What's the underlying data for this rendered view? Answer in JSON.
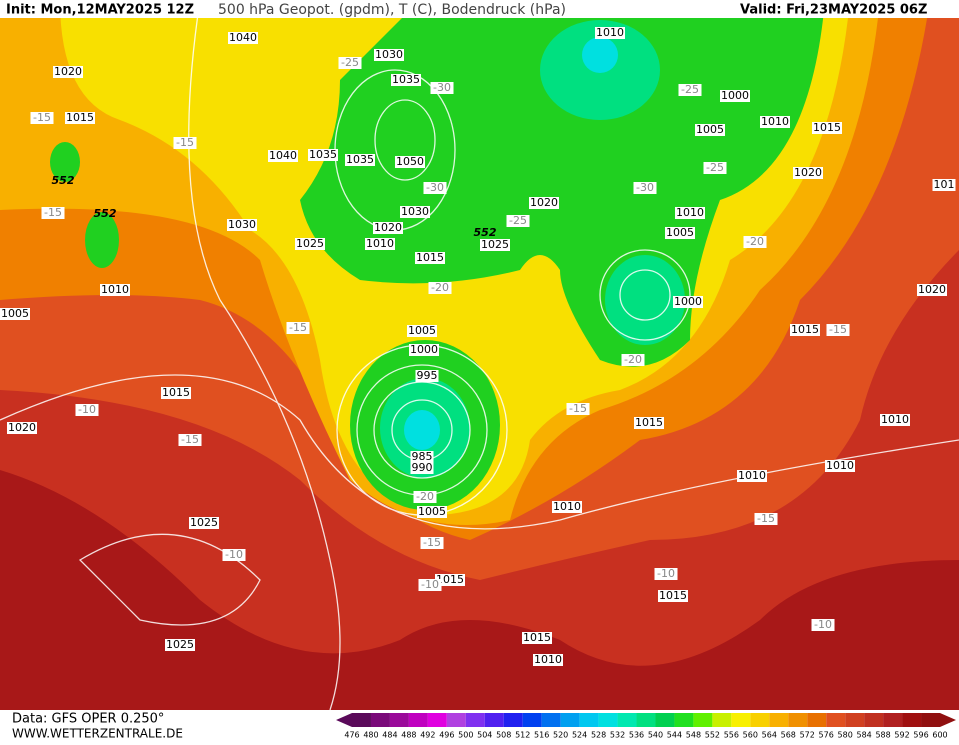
{
  "header": {
    "init": "Init: Mon,12MAY2025 12Z",
    "title": "500 hPa Geopot. (gpdm), T (C), Bodendruck (hPa)",
    "valid": "Valid: Fri,23MAY2025 06Z"
  },
  "footer": {
    "data_source": "Data: GFS OPER 0.250°",
    "website": "WWW.WETTERZENTRALE.DE"
  },
  "colorbar": {
    "ticks": [
      476,
      480,
      484,
      488,
      492,
      496,
      500,
      504,
      508,
      512,
      516,
      520,
      524,
      528,
      532,
      536,
      540,
      544,
      548,
      552,
      556,
      560,
      564,
      568,
      572,
      576,
      580,
      584,
      588,
      592,
      596,
      600
    ],
    "colors": [
      "#5a0a5a",
      "#7a0a7a",
      "#9a0a9a",
      "#c000c0",
      "#e000e0",
      "#b040e0",
      "#8030f0",
      "#5020f0",
      "#2020f0",
      "#0040f0",
      "#0070f0",
      "#00a0f0",
      "#00c8f0",
      "#00e0e0",
      "#00e8b0",
      "#00e080",
      "#00d050",
      "#20e020",
      "#60f000",
      "#c8f000",
      "#f8f000",
      "#f8d000",
      "#f8b000",
      "#f09000",
      "#e87000",
      "#e05020",
      "#d04020",
      "#c03020",
      "#b02020",
      "#a01010",
      "#901010"
    ]
  },
  "map": {
    "labels": [
      "1040",
      "1020",
      "1015",
      "-15",
      "-15",
      "1040",
      "1035",
      "1035",
      "1050",
      "1030",
      "1030",
      "1035",
      "1030",
      "1020",
      "1010",
      "1025",
      "1015",
      "1025",
      "552",
      "552",
      "552",
      "1010",
      "1005",
      "-15",
      "1010",
      "1000",
      "1005",
      "1010",
      "1015",
      "1020",
      "-25",
      "-25",
      "-30",
      "1020",
      "-25",
      "1010",
      "1005",
      "-20",
      "1000",
      "1015",
      "-15",
      "1020",
      "101",
      "-15",
      "-20",
      "1005",
      "1000",
      "995",
      "985",
      "990",
      "-20",
      "1005",
      "1015",
      "-10",
      "-15",
      "1020",
      "-15",
      "1015",
      "1010",
      "1010",
      "1010",
      "-15",
      "1010",
      "1025",
      "-10",
      "-15",
      "1015",
      "-10",
      "-10",
      "1015",
      "-10",
      "1025",
      "1015",
      "1010",
      "-25",
      "-30",
      "-30",
      "-20"
    ]
  }
}
